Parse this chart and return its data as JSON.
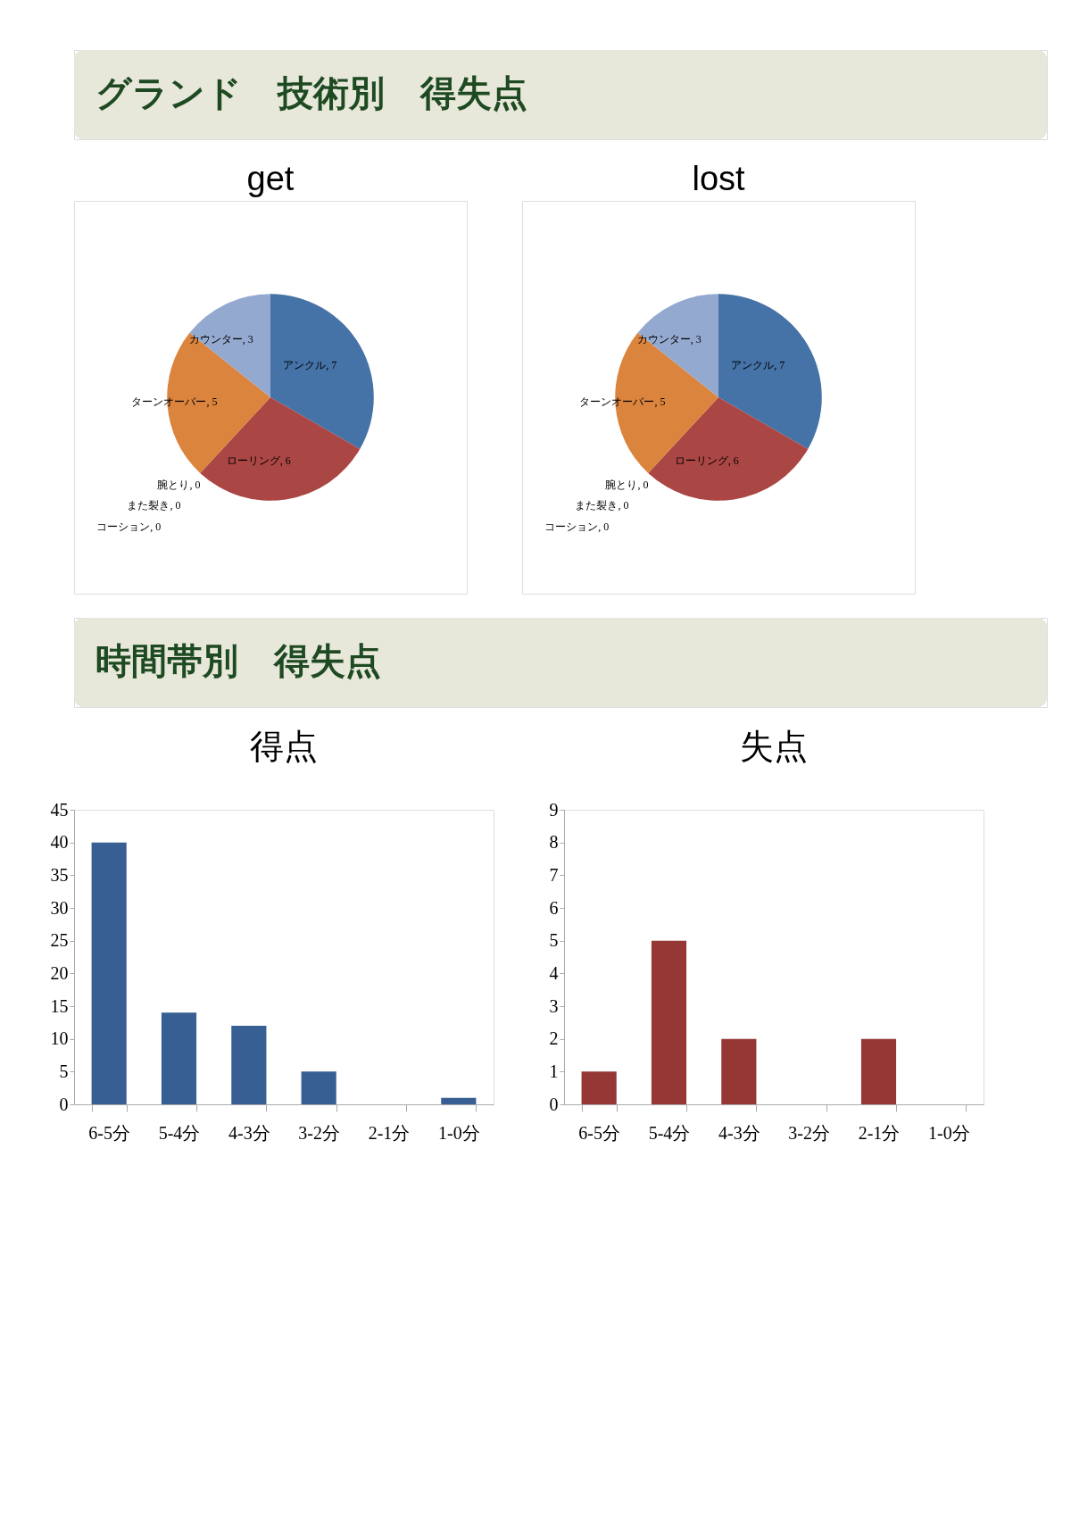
{
  "chart_data": [
    {
      "type": "other",
      "title": "グランド　技術別　得失点"
    },
    {
      "type": "pie",
      "title": "get",
      "categories": [
        "アンクル",
        "ローリング",
        "腕とり",
        "また裂き",
        "コーション",
        "ターンオーバー",
        "カウンター"
      ],
      "values": [
        7,
        6,
        0,
        0,
        0,
        5,
        3
      ],
      "colors": [
        "#4572a7",
        "#aa4643",
        "#89a54e",
        "#71588f",
        "#4198af",
        "#db843d",
        "#93a9cf"
      ],
      "value_labels": [
        ", 7",
        ", 6",
        ", 0",
        ", 0",
        ", 0",
        ", 5",
        ", 3"
      ]
    },
    {
      "type": "pie",
      "title": "lost",
      "categories": [
        "アンクル",
        "ローリング",
        "腕とり",
        "また裂き",
        "コーション",
        "ターンオーバー",
        "カウンター"
      ],
      "values": [
        7,
        6,
        0,
        0,
        0,
        5,
        3
      ],
      "colors": [
        "#4572a7",
        "#aa4643",
        "#89a54e",
        "#71588f",
        "#4198af",
        "#db843d",
        "#93a9cf"
      ],
      "value_labels": [
        ", 7",
        ", 6",
        ", 0",
        ", 0",
        ", 0",
        ", 5",
        ", 3"
      ]
    },
    {
      "type": "other",
      "title": "時間帯別　得失点"
    },
    {
      "type": "bar",
      "title": "得点",
      "categories": [
        "6-5分",
        "5-4分",
        "4-3分",
        "3-2分",
        "2-1分",
        "1-0分"
      ],
      "values": [
        40,
        14,
        12,
        5,
        0,
        1
      ],
      "color": "#375f93",
      "ylim": [
        0,
        45
      ],
      "yticks": [
        0,
        5,
        10,
        15,
        20,
        25,
        30,
        35,
        40,
        45
      ]
    },
    {
      "type": "bar",
      "title": "失点",
      "categories": [
        "6-5分",
        "5-4分",
        "4-3分",
        "3-2分",
        "2-1分",
        "1-0分"
      ],
      "values": [
        1,
        5,
        2,
        0,
        2,
        0
      ],
      "color": "#953735",
      "ylim": [
        0,
        9
      ],
      "yticks": [
        0,
        1,
        2,
        3,
        4,
        5,
        6,
        7,
        8,
        9
      ]
    }
  ]
}
